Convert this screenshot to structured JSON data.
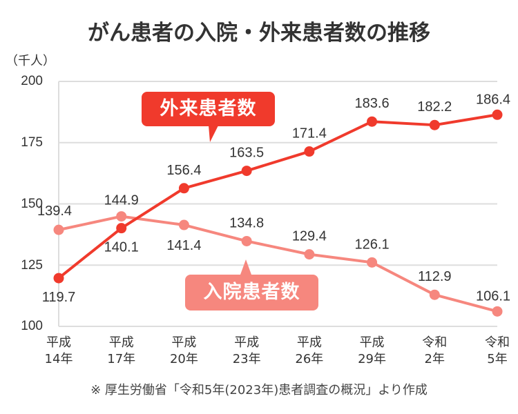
{
  "title": "がん患者の入院・外来患者数の推移",
  "unit_label": "（千人）",
  "source_note": "※ 厚生労働省「令和5年(2023年)患者調査の概況」より作成",
  "callouts": {
    "outpatient": "外来患者数",
    "inpatient": "入院患者数"
  },
  "colors": {
    "outpatient": "#f03a2c",
    "inpatient": "#f6877e",
    "grid": "#dddddd"
  },
  "y_ticks": [
    "200",
    "175",
    "150",
    "125",
    "100"
  ],
  "x_ticks": [
    {
      "line1": "平成",
      "line2": "14年"
    },
    {
      "line1": "平成",
      "line2": "17年"
    },
    {
      "line1": "平成",
      "line2": "20年"
    },
    {
      "line1": "平成",
      "line2": "23年"
    },
    {
      "line1": "平成",
      "line2": "26年"
    },
    {
      "line1": "平成",
      "line2": "29年"
    },
    {
      "line1": "令和",
      "line2": "2年"
    },
    {
      "line1": "令和",
      "line2": "5年"
    }
  ],
  "chart_data": {
    "type": "line",
    "title": "がん患者の入院・外来患者数の推移",
    "xlabel": "",
    "ylabel": "（千人）",
    "categories": [
      "平成14年",
      "平成17年",
      "平成20年",
      "平成23年",
      "平成26年",
      "平成29年",
      "令和2年",
      "令和5年"
    ],
    "series": [
      {
        "name": "外来患者数",
        "color": "#f03a2c",
        "values": [
          119.7,
          140.1,
          156.4,
          163.5,
          171.4,
          183.6,
          182.2,
          186.4
        ]
      },
      {
        "name": "入院患者数",
        "color": "#f6877e",
        "values": [
          139.4,
          144.9,
          141.4,
          134.8,
          129.4,
          126.1,
          112.9,
          106.1
        ]
      }
    ],
    "ylim": [
      100,
      200
    ],
    "yticks": [
      100,
      125,
      150,
      175,
      200
    ],
    "grid": true,
    "legend_position": "inline callouts",
    "source": "※ 厚生労働省「令和5年(2023年)患者調査の概況」より作成"
  }
}
